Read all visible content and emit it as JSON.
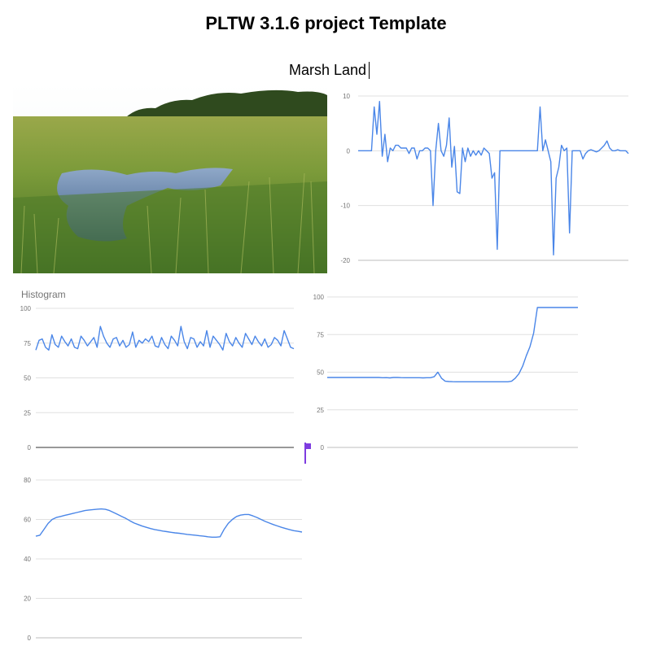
{
  "page": {
    "title": "PLTW 3.1.6  project Template",
    "image_caption": "Marsh Land"
  },
  "image": {
    "description_icon": "marsh-photo"
  },
  "colors": {
    "series": "#4a86e8",
    "grid": "#e0e0e0",
    "axis_text": "#757575",
    "flag": "#7e3ce0"
  },
  "chart_data": [
    {
      "type": "line",
      "ylim": [
        -20,
        10
      ],
      "yticks": [
        10,
        0,
        -10,
        -20
      ],
      "values": [
        0,
        0,
        0,
        0,
        0,
        0,
        8,
        3,
        9,
        -1,
        3,
        -2,
        0.5,
        0,
        1,
        1,
        0.5,
        0.5,
        0.5,
        -0.5,
        0.5,
        0.5,
        -1.5,
        0,
        0,
        0.5,
        0.5,
        0,
        -10,
        0,
        5,
        0,
        -1,
        1,
        6,
        -3,
        0.8,
        -7.5,
        -7.8,
        0.5,
        -2,
        0.5,
        -1,
        0,
        -0.8,
        0,
        -0.8,
        0.5,
        0,
        -0.5,
        -5,
        -4,
        -18,
        0,
        0,
        0,
        0,
        0,
        0,
        0,
        0,
        0,
        0,
        0,
        0,
        0,
        0,
        0,
        8,
        0,
        2,
        0,
        -2,
        -19,
        -5,
        -3,
        1,
        0,
        0.5,
        -15,
        0,
        0,
        0,
        0,
        -1.5,
        -0.5,
        0,
        0.2,
        0,
        -0.2,
        0,
        0.5,
        1,
        1.8,
        0.5,
        0,
        0,
        0.2,
        0,
        0,
        0,
        -0.5
      ]
    },
    {
      "type": "line",
      "title": "Histogram",
      "ylim": [
        0,
        100
      ],
      "yticks": [
        100,
        75,
        50,
        25,
        0
      ],
      "values": [
        70,
        77,
        78,
        72,
        70,
        81,
        74,
        72,
        80,
        76,
        73,
        78,
        72,
        71,
        80,
        77,
        73,
        76,
        79,
        72,
        87,
        80,
        75,
        72,
        78,
        79,
        73,
        77,
        72,
        74,
        83,
        72,
        77,
        75,
        78,
        76,
        80,
        73,
        72,
        79,
        74,
        71,
        80,
        77,
        73,
        87,
        76,
        71,
        79,
        78,
        72,
        76,
        73,
        84,
        72,
        80,
        77,
        74,
        70,
        82,
        76,
        73,
        79,
        75,
        72,
        82,
        78,
        74,
        80,
        76,
        73,
        78,
        72,
        74,
        79,
        77,
        73,
        84,
        78,
        72,
        71
      ]
    },
    {
      "type": "line",
      "ylim": [
        0,
        100
      ],
      "yticks": [
        100,
        75,
        50,
        25,
        0
      ],
      "values": [
        46.5,
        46.5,
        46.5,
        46.5,
        46.5,
        46.5,
        46.5,
        46.5,
        46.5,
        46.5,
        46.5,
        46.5,
        46.5,
        46.5,
        46.5,
        46.3,
        46.4,
        46.2,
        46.5,
        46.5,
        46.4,
        46.3,
        46.3,
        46.3,
        46.3,
        46.3,
        46.2,
        46.3,
        46.3,
        47,
        50,
        46,
        44,
        43.8,
        43.7,
        43.6,
        43.6,
        43.6,
        43.6,
        43.6,
        43.6,
        43.6,
        43.6,
        43.6,
        43.6,
        43.6,
        43.6,
        43.6,
        43.6,
        43.6,
        44,
        46,
        49,
        54,
        61,
        67,
        76,
        93,
        93,
        93,
        93,
        93,
        93,
        93,
        93,
        93,
        93,
        93,
        93
      ]
    },
    {
      "type": "line",
      "ylim": [
        0,
        80
      ],
      "yticks": [
        80,
        60,
        40,
        20,
        0
      ],
      "values": [
        51.5,
        52,
        55,
        58,
        60,
        61,
        61.5,
        62,
        62.5,
        63,
        63.5,
        64,
        64.5,
        64.8,
        65,
        65.2,
        65.3,
        65.1,
        64.5,
        63.5,
        62.5,
        61.5,
        60.5,
        59.3,
        58.2,
        57.4,
        56.6,
        56,
        55.4,
        54.9,
        54.5,
        54.1,
        53.8,
        53.5,
        53.2,
        53,
        52.7,
        52.4,
        52.2,
        52,
        51.7,
        51.5,
        51.2,
        51,
        51,
        51.2,
        55,
        58,
        60,
        61.5,
        62.2,
        62.5,
        62.5,
        61.8,
        61,
        60,
        59,
        58.2,
        57.4,
        56.7,
        56,
        55.4,
        54.8,
        54.3,
        54,
        53.6
      ]
    }
  ]
}
